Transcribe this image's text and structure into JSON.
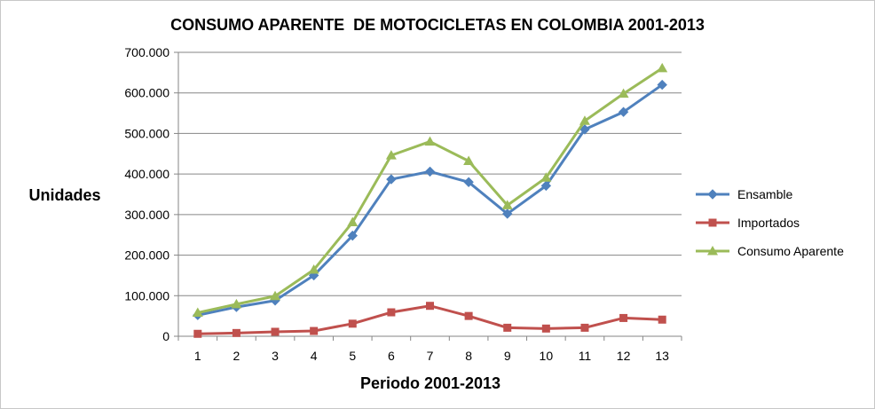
{
  "chart_data": {
    "type": "line",
    "title": "CONSUMO APARENTE  DE MOTOCICLETAS EN COLOMBIA 2001-2013",
    "xlabel": "Periodo 2001-2013",
    "ylabel": "Unidades",
    "categories": [
      "1",
      "2",
      "3",
      "4",
      "5",
      "6",
      "7",
      "8",
      "9",
      "10",
      "11",
      "12",
      "13"
    ],
    "ylim": [
      0,
      700000
    ],
    "y_ticks": [
      0,
      100000,
      200000,
      300000,
      400000,
      500000,
      600000,
      700000
    ],
    "y_tick_labels": [
      "0",
      "100.000",
      "200.000",
      "300.000",
      "400.000",
      "500.000",
      "600.000",
      "700.000"
    ],
    "grid": "horizontal",
    "legend_position": "right",
    "series": [
      {
        "name": "Ensamble",
        "color": "#4F81BD",
        "marker": "diamond",
        "values": [
          52000,
          72000,
          88000,
          150000,
          248000,
          387000,
          406000,
          380000,
          302000,
          371000,
          510000,
          553000,
          620000
        ]
      },
      {
        "name": "Importados",
        "color": "#C0504D",
        "marker": "square",
        "values": [
          6000,
          8000,
          11000,
          13000,
          31000,
          59000,
          75000,
          50000,
          21000,
          19000,
          21000,
          45000,
          41000
        ]
      },
      {
        "name": "Consumo Aparente",
        "color": "#9BBB59",
        "marker": "triangle",
        "values": [
          58000,
          79000,
          99000,
          164000,
          281000,
          446000,
          480000,
          432000,
          323000,
          391000,
          531000,
          598000,
          661000
        ]
      }
    ]
  }
}
